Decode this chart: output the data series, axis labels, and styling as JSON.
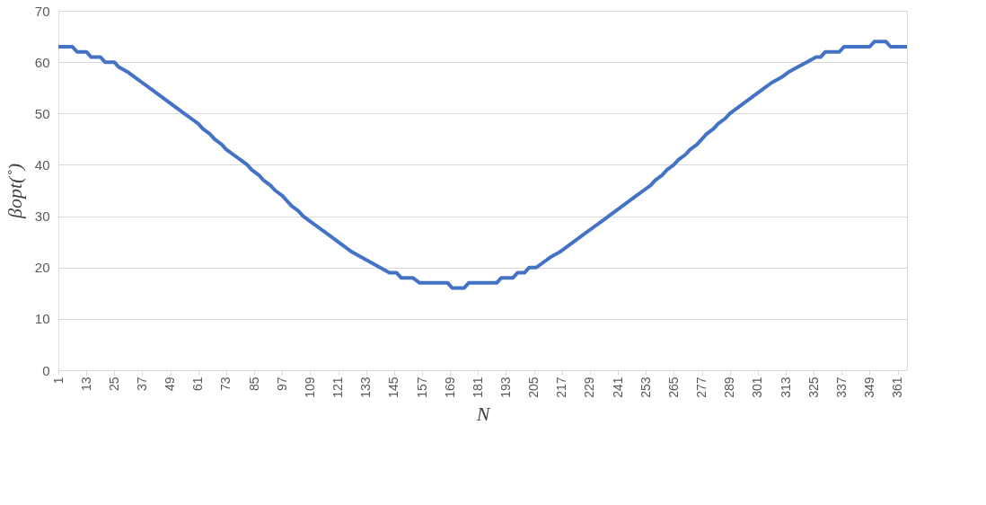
{
  "chart_data": {
    "type": "line",
    "xlabel": "N",
    "ylabel": "βopt(˚)",
    "xlim": [
      1,
      365
    ],
    "xticks": [
      1,
      13,
      25,
      37,
      49,
      61,
      73,
      85,
      97,
      109,
      121,
      133,
      145,
      157,
      169,
      181,
      193,
      205,
      217,
      229,
      241,
      253,
      265,
      277,
      289,
      301,
      313,
      325,
      337,
      349,
      361
    ],
    "ylim": [
      0,
      70
    ],
    "yticks": [
      0,
      10,
      20,
      30,
      40,
      50,
      60,
      70
    ],
    "grid": "y",
    "line_style": "solid",
    "marker": "none",
    "series": [
      {
        "color": "#4472c4",
        "x": [
          1,
          7,
          9,
          13,
          15,
          19,
          21,
          25,
          27,
          31,
          34,
          37,
          40,
          43,
          46,
          49,
          52,
          55,
          58,
          61,
          63,
          66,
          68,
          71,
          73,
          76,
          79,
          82,
          84,
          87,
          89,
          92,
          94,
          97,
          99,
          101,
          104,
          106,
          109,
          112,
          115,
          118,
          121,
          124,
          127,
          131,
          135,
          139,
          143,
          146,
          148,
          153,
          156,
          168,
          170,
          175,
          177,
          189,
          191,
          196,
          198,
          201,
          203,
          206,
          209,
          212,
          216,
          219,
          222,
          225,
          228,
          231,
          234,
          237,
          240,
          243,
          246,
          249,
          252,
          255,
          257,
          260,
          262,
          265,
          267,
          270,
          272,
          275,
          277,
          279,
          282,
          284,
          287,
          289,
          292,
          295,
          298,
          301,
          304,
          307,
          311,
          314,
          318,
          322,
          326,
          328,
          330,
          336,
          338,
          349,
          351,
          356,
          358,
          365
        ],
        "values": [
          63,
          63,
          62,
          62,
          61,
          61,
          60,
          60,
          59,
          58,
          57,
          56,
          55,
          54,
          53,
          52,
          51,
          50,
          49,
          48,
          47,
          46,
          45,
          44,
          43,
          42,
          41,
          40,
          39,
          38,
          37,
          36,
          35,
          34,
          33,
          32,
          31,
          30,
          29,
          28,
          27,
          26,
          25,
          24,
          23,
          22,
          21,
          20,
          19,
          19,
          18,
          18,
          17,
          17,
          16,
          16,
          17,
          17,
          18,
          18,
          19,
          19,
          20,
          20,
          21,
          22,
          23,
          24,
          25,
          26,
          27,
          28,
          29,
          30,
          31,
          32,
          33,
          34,
          35,
          36,
          37,
          38,
          39,
          40,
          41,
          42,
          43,
          44,
          45,
          46,
          47,
          48,
          49,
          50,
          51,
          52,
          53,
          54,
          55,
          56,
          57,
          58,
          59,
          60,
          61,
          61,
          62,
          62,
          63,
          63,
          64,
          64,
          63,
          63
        ]
      }
    ]
  }
}
